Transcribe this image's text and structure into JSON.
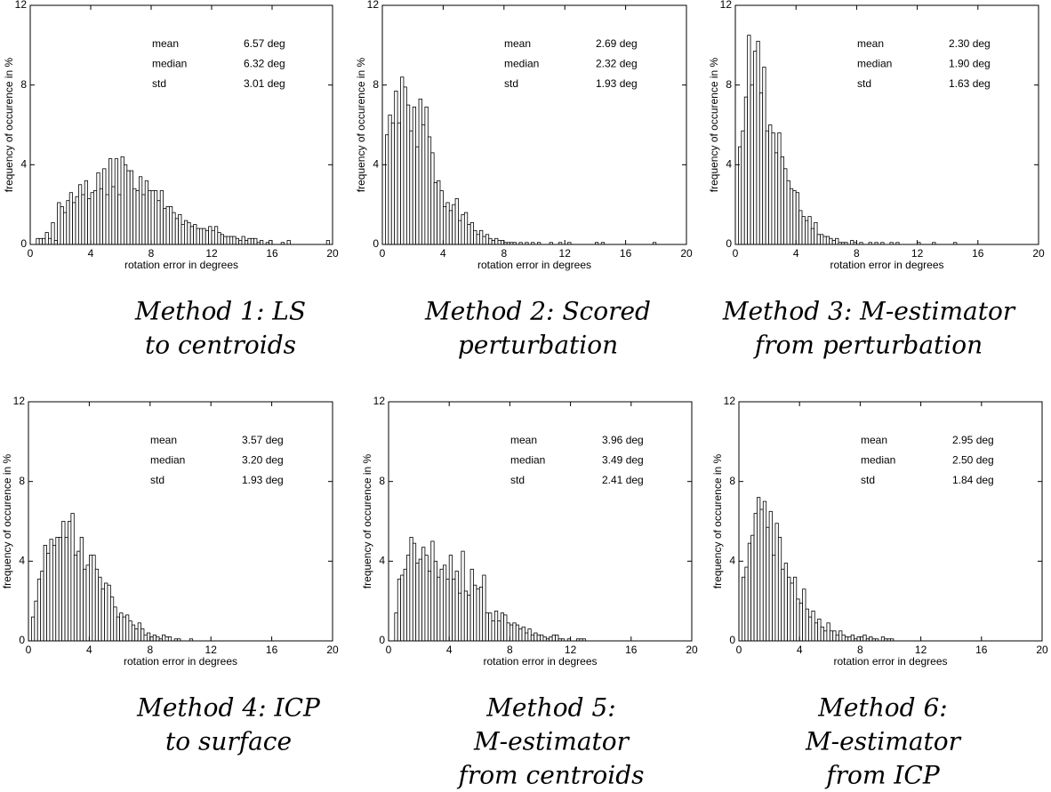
{
  "chart_data": [
    {
      "type": "histogram",
      "xlabel": "rotation error in degrees",
      "ylabel": "frequency of occurence in %",
      "xlim": [
        0,
        20
      ],
      "ylim": [
        0,
        12
      ],
      "xticks": [
        0,
        4,
        8,
        12,
        16,
        20
      ],
      "yticks": [
        0,
        4,
        8,
        12
      ],
      "stats": [
        {
          "label": "mean",
          "value": "6.57 deg"
        },
        {
          "label": "median",
          "value": "6.32 deg"
        },
        {
          "label": "std",
          "value": "3.01 deg"
        }
      ],
      "caption": [
        "Method 1: LS",
        "to centroids"
      ],
      "bins": [
        0,
        0.2,
        0.4,
        0.6,
        0.8,
        1,
        1.2,
        1.4,
        1.6,
        1.8,
        2,
        2.2,
        2.4,
        2.6,
        2.8,
        3,
        3.2,
        3.4,
        3.6,
        3.8,
        4,
        4.2,
        4.4,
        4.6,
        4.8,
        5,
        5.2,
        5.4,
        5.6,
        5.8,
        6,
        6.2,
        6.4,
        6.6,
        6.8,
        7,
        7.2,
        7.4,
        7.6,
        7.8,
        8,
        8.2,
        8.4,
        8.6,
        8.8,
        9,
        9.2,
        9.4,
        9.6,
        9.8,
        10,
        10.2,
        10.4,
        10.6,
        10.8,
        11,
        11.2,
        11.4,
        11.6,
        11.8,
        12,
        12.2,
        12.4,
        12.6,
        12.8,
        13,
        13.2,
        13.4,
        13.6,
        13.8,
        14,
        14.2,
        14.4,
        14.6,
        14.8,
        15,
        15.2,
        15.4,
        15.6,
        15.8,
        16,
        16.2,
        16.4,
        16.6,
        16.8,
        17,
        17.2,
        17.4,
        17.6,
        17.8,
        18,
        18.2,
        18.4,
        18.6,
        18.8,
        19,
        19.2,
        19.4,
        19.6,
        19.8
      ],
      "values": [
        0,
        0,
        0.3,
        0.3,
        0.3,
        0.6,
        0.3,
        1.1,
        0.2,
        2.1,
        1.9,
        1.6,
        2.2,
        2.6,
        2.1,
        2.4,
        3.0,
        2.5,
        3.2,
        2.3,
        2.6,
        2.7,
        3.6,
        2.8,
        3.8,
        2.5,
        4.3,
        2.9,
        4.3,
        2.5,
        4.4,
        4.0,
        3.7,
        3.7,
        2.8,
        2.7,
        3.4,
        2.5,
        3.2,
        2.7,
        2.7,
        2.7,
        2.2,
        2.7,
        1.8,
        1.9,
        1.9,
        1.6,
        1.3,
        1.5,
        1.0,
        1.2,
        1.1,
        0.9,
        1.0,
        0.8,
        0.8,
        0.8,
        0.7,
        0.9,
        0.7,
        0.9,
        0.6,
        0.5,
        0.4,
        0.4,
        0.4,
        0.4,
        0.3,
        0.2,
        0.4,
        0.2,
        0.3,
        0.3,
        0.3,
        0.1,
        0.2,
        0,
        0.1,
        0.2,
        0,
        0,
        0,
        0.1,
        0,
        0.2,
        0,
        0,
        0,
        0,
        0,
        0,
        0,
        0,
        0,
        0,
        0,
        0,
        0.2
      ]
    },
    {
      "type": "histogram",
      "xlabel": "rotation error in degrees",
      "ylabel": "frequency of occurence in %",
      "xlim": [
        0,
        20
      ],
      "ylim": [
        0,
        12
      ],
      "xticks": [
        0,
        4,
        8,
        12,
        16,
        20
      ],
      "yticks": [
        0,
        4,
        8,
        12
      ],
      "stats": [
        {
          "label": "mean",
          "value": "2.69 deg"
        },
        {
          "label": "median",
          "value": "2.32 deg"
        },
        {
          "label": "std",
          "value": "1.93 deg"
        }
      ],
      "caption": [
        "Method 2: Scored",
        "perturbation"
      ],
      "bins": [
        0,
        0.2,
        0.4,
        0.6,
        0.8,
        1,
        1.2,
        1.4,
        1.6,
        1.8,
        2,
        2.2,
        2.4,
        2.6,
        2.8,
        3,
        3.2,
        3.4,
        3.6,
        3.8,
        4,
        4.2,
        4.4,
        4.6,
        4.8,
        5,
        5.2,
        5.4,
        5.6,
        5.8,
        6,
        6.2,
        6.4,
        6.6,
        6.8,
        7,
        7.2,
        7.4,
        7.6,
        7.8,
        8,
        8.2,
        8.4,
        8.6,
        8.8,
        9,
        9.2,
        9.4,
        9.6,
        9.8,
        10,
        10.2,
        10.4,
        10.6,
        10.8,
        11,
        11.2,
        11.4,
        11.6,
        11.8,
        12,
        12.2,
        12.4,
        12.6,
        12.8,
        13,
        13.2,
        13.4,
        13.6,
        13.8,
        14,
        14.2,
        14.4,
        14.6,
        14.8,
        15,
        15.2,
        15.4,
        15.6,
        15.8,
        16,
        16.2,
        16.4,
        16.6,
        16.8,
        17,
        17.2,
        17.4,
        17.6,
        17.8,
        18
      ],
      "values": [
        0,
        5.5,
        6.5,
        6.1,
        7.7,
        6.1,
        8.4,
        7.9,
        7.0,
        5.7,
        6.9,
        4.9,
        7.3,
        6.0,
        6.9,
        5.4,
        4.6,
        3.1,
        3.2,
        2.7,
        1.9,
        2.1,
        1.7,
        2.0,
        2.3,
        1.2,
        1.5,
        1.6,
        1.0,
        1.1,
        0.7,
        0.5,
        0.7,
        0.4,
        0.5,
        0.3,
        0.2,
        0.3,
        0.2,
        0.2,
        0.1,
        0.1,
        0.1,
        0.1,
        0,
        0.1,
        0,
        0.1,
        0,
        0.1,
        0,
        0.1,
        0,
        0,
        0,
        0.1,
        0,
        0,
        0.1,
        0,
        0,
        0.1,
        0,
        0,
        0,
        0,
        0,
        0,
        0,
        0,
        0.1,
        0,
        0.1,
        0,
        0,
        0,
        0,
        0,
        0,
        0,
        0,
        0,
        0,
        0,
        0,
        0,
        0,
        0,
        0,
        0.1
      ]
    },
    {
      "type": "histogram",
      "xlabel": "rotation error in degrees",
      "ylabel": "frequency of occurence in %",
      "xlim": [
        0,
        20
      ],
      "ylim": [
        0,
        12
      ],
      "xticks": [
        0,
        4,
        8,
        12,
        16,
        20
      ],
      "yticks": [
        0,
        4,
        8,
        12
      ],
      "stats": [
        {
          "label": "mean",
          "value": "2.30 deg"
        },
        {
          "label": "median",
          "value": "1.90 deg"
        },
        {
          "label": "std",
          "value": "1.63 deg"
        }
      ],
      "caption": [
        "Method 3: M-estimator",
        "from perturbation"
      ],
      "bins": [
        0,
        0.2,
        0.4,
        0.6,
        0.8,
        1,
        1.2,
        1.4,
        1.6,
        1.8,
        2,
        2.2,
        2.4,
        2.6,
        2.8,
        3,
        3.2,
        3.4,
        3.6,
        3.8,
        4,
        4.2,
        4.4,
        4.6,
        4.8,
        5,
        5.2,
        5.4,
        5.6,
        5.8,
        6,
        6.2,
        6.4,
        6.6,
        6.8,
        7,
        7.2,
        7.4,
        7.6,
        7.8,
        8,
        8.2,
        8.4,
        8.6,
        8.8,
        9,
        9.2,
        9.4,
        9.6,
        9.8,
        10,
        10.2,
        10.4,
        10.6,
        10.8,
        11,
        11.2,
        11.4,
        11.6,
        11.8,
        12,
        12.2,
        12.4,
        12.6,
        12.8,
        13,
        13.2,
        13.4,
        13.6,
        13.8,
        14,
        14.2,
        14.4,
        14.6
      ],
      "values": [
        0,
        4.9,
        5.7,
        7.4,
        10.5,
        8.0,
        9.7,
        10.2,
        7.6,
        8.9,
        5.7,
        6.0,
        5.6,
        4.6,
        5.6,
        4.4,
        3.8,
        3.2,
        2.8,
        2.7,
        2.6,
        1.7,
        1.4,
        1.2,
        1.4,
        0.8,
        1.1,
        0.5,
        0.5,
        0.4,
        0.4,
        0.3,
        0.2,
        0.3,
        0.1,
        0.1,
        0.1,
        0,
        0.2,
        0.1,
        0,
        0.1,
        0,
        0,
        0.1,
        0,
        0.1,
        0,
        0.1,
        0,
        0,
        0.1,
        0,
        0.1,
        0,
        0,
        0,
        0,
        0,
        0,
        0.1,
        0,
        0,
        0,
        0,
        0.1,
        0,
        0,
        0,
        0,
        0,
        0,
        0.1
      ]
    },
    {
      "type": "histogram",
      "xlabel": "rotation error in degrees",
      "ylabel": "frequency of occurence in %",
      "xlim": [
        0,
        20
      ],
      "ylim": [
        0,
        12
      ],
      "xticks": [
        0,
        4,
        8,
        12,
        16,
        20
      ],
      "yticks": [
        0,
        4,
        8,
        12
      ],
      "stats": [
        {
          "label": "mean",
          "value": "3.57 deg"
        },
        {
          "label": "median",
          "value": "3.20 deg"
        },
        {
          "label": "std",
          "value": "1.93 deg"
        }
      ],
      "caption": [
        "Method 4: ICP",
        "to surface"
      ],
      "bins": [
        0,
        0.2,
        0.4,
        0.6,
        0.8,
        1,
        1.2,
        1.4,
        1.6,
        1.8,
        2,
        2.2,
        2.4,
        2.6,
        2.8,
        3,
        3.2,
        3.4,
        3.6,
        3.8,
        4,
        4.2,
        4.4,
        4.6,
        4.8,
        5,
        5.2,
        5.4,
        5.6,
        5.8,
        6,
        6.2,
        6.4,
        6.6,
        6.8,
        7,
        7.2,
        7.4,
        7.6,
        7.8,
        8,
        8.2,
        8.4,
        8.6,
        8.8,
        9,
        9.2,
        9.4,
        9.6,
        9.8,
        10,
        10.2,
        10.4,
        10.6,
        10.8
      ],
      "values": [
        0,
        1.2,
        2.0,
        3.1,
        3.5,
        4.8,
        4.4,
        5.1,
        4.8,
        5.2,
        5.2,
        6.0,
        5.2,
        6.0,
        6.4,
        4.3,
        4.5,
        5.2,
        3.6,
        3.8,
        4.3,
        4.3,
        3.6,
        3.2,
        2.6,
        2.9,
        2.8,
        2.2,
        1.7,
        1.2,
        1.4,
        1.2,
        1.3,
        1.0,
        0.8,
        0.6,
        0.9,
        0.6,
        0.3,
        0.4,
        0.2,
        0.3,
        0.2,
        0.1,
        0.3,
        0.2,
        0.2,
        0,
        0.1,
        0.1,
        0,
        0,
        0,
        0.1
      ]
    },
    {
      "type": "histogram",
      "xlabel": "rotation error in degrees",
      "ylabel": "frequency of occurence in %",
      "xlim": [
        0,
        20
      ],
      "ylim": [
        0,
        12
      ],
      "xticks": [
        0,
        4,
        8,
        12,
        16,
        20
      ],
      "yticks": [
        0,
        4,
        8,
        12
      ],
      "stats": [
        {
          "label": "mean",
          "value": "3.96 deg"
        },
        {
          "label": "median",
          "value": "3.49 deg"
        },
        {
          "label": "std",
          "value": "2.41 deg"
        }
      ],
      "caption": [
        "Method 5:",
        "M-estimator",
        "from centroids"
      ],
      "bins": [
        0,
        0.2,
        0.4,
        0.6,
        0.8,
        1,
        1.2,
        1.4,
        1.6,
        1.8,
        2,
        2.2,
        2.4,
        2.6,
        2.8,
        3,
        3.2,
        3.4,
        3.6,
        3.8,
        4,
        4.2,
        4.4,
        4.6,
        4.8,
        5,
        5.2,
        5.4,
        5.6,
        5.8,
        6,
        6.2,
        6.4,
        6.6,
        6.8,
        7,
        7.2,
        7.4,
        7.6,
        7.8,
        8,
        8.2,
        8.4,
        8.6,
        8.8,
        9,
        9.2,
        9.4,
        9.6,
        9.8,
        10,
        10.2,
        10.4,
        10.6,
        10.8,
        11,
        11.2,
        11.4,
        11.6,
        11.8,
        12,
        12.2,
        12.4,
        12.6,
        12.8,
        13
      ],
      "values": [
        0,
        0,
        1.4,
        3.1,
        3.3,
        3.6,
        4.3,
        5.2,
        4.9,
        3.9,
        4.1,
        4.7,
        4.3,
        3.5,
        5.0,
        4.0,
        3.2,
        3.6,
        3.8,
        3.1,
        4.3,
        3.1,
        3.5,
        2.4,
        4.5,
        2.5,
        2.3,
        3.6,
        2.8,
        2.6,
        2.7,
        3.3,
        1.4,
        1.4,
        1.0,
        1.5,
        1.0,
        1.4,
        1.3,
        0.9,
        0.8,
        0.9,
        0.8,
        0.6,
        0.7,
        0.4,
        0.6,
        0.3,
        0.4,
        0.3,
        0.3,
        0.2,
        0.1,
        0.2,
        0.3,
        0.3,
        0.1,
        0.1,
        0,
        0.1,
        0,
        0,
        0.1,
        0.1,
        0.1
      ]
    },
    {
      "type": "histogram",
      "xlabel": "rotation error in degrees",
      "ylabel": "frequency of occurence in %",
      "xlim": [
        0,
        20
      ],
      "ylim": [
        0,
        12
      ],
      "xticks": [
        0,
        4,
        8,
        12,
        16,
        20
      ],
      "yticks": [
        0,
        4,
        8,
        12
      ],
      "stats": [
        {
          "label": "mean",
          "value": "2.95 deg"
        },
        {
          "label": "median",
          "value": "2.50 deg"
        },
        {
          "label": "std",
          "value": "1.84 deg"
        }
      ],
      "caption": [
        "Method 6:",
        "M-estimator",
        "from ICP"
      ],
      "bins": [
        0,
        0.2,
        0.4,
        0.6,
        0.8,
        1,
        1.2,
        1.4,
        1.6,
        1.8,
        2,
        2.2,
        2.4,
        2.6,
        2.8,
        3,
        3.2,
        3.4,
        3.6,
        3.8,
        4,
        4.2,
        4.4,
        4.6,
        4.8,
        5,
        5.2,
        5.4,
        5.6,
        5.8,
        6,
        6.2,
        6.4,
        6.6,
        6.8,
        7,
        7.2,
        7.4,
        7.6,
        7.8,
        8,
        8.2,
        8.4,
        8.6,
        8.8,
        9,
        9.2,
        9.4,
        9.6,
        9.8,
        10,
        10.2
      ],
      "values": [
        0,
        3.2,
        3.7,
        4.9,
        5.3,
        6.4,
        7.2,
        6.6,
        7.0,
        5.7,
        6.5,
        4.3,
        5.9,
        5.2,
        3.6,
        3.9,
        3.2,
        2.9,
        3.2,
        2.1,
        1.9,
        2.6,
        1.6,
        1.2,
        1.5,
        0.9,
        1.1,
        0.7,
        0.5,
        0.9,
        0.5,
        0.5,
        0.3,
        0.5,
        0.3,
        0.2,
        0.2,
        0.3,
        0.1,
        0.2,
        0.2,
        0.3,
        0.1,
        0.2,
        0.1,
        0.1,
        0,
        0.2,
        0.1,
        0.1,
        0.1
      ]
    }
  ]
}
